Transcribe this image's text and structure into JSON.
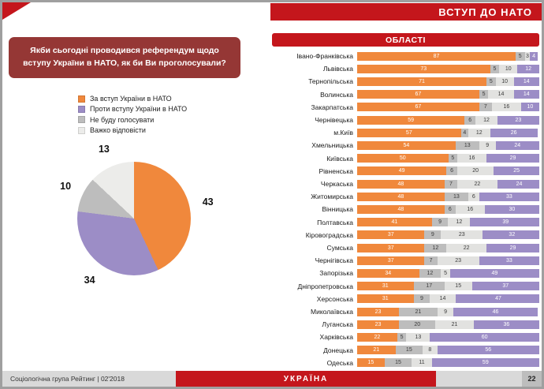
{
  "colors": {
    "banner_red": "#c4161c",
    "question_box_red": "#953735",
    "za_orange": "#f0883c",
    "proty_purple": "#9c8dc6",
    "ne_budu_gray": "#bdbdbd",
    "vazhko_light_gray": "#e2e2e0"
  },
  "header": {
    "title": "ВСТУП ДО НАТО"
  },
  "question": {
    "text": "Якби сьогодні проводився референдум щодо вступу України в НАТО, як би Ви проголосували?"
  },
  "regions_header": "ОБЛАСТІ",
  "legend": [
    {
      "label": "За вступ України в НАТО",
      "color": "#f0883c"
    },
    {
      "label": "Проти вступу України в НАТО",
      "color": "#9c8dc6"
    },
    {
      "label": "Не буду голосувати",
      "color": "#bdbdbd"
    },
    {
      "label": "Важко відповісти",
      "color": "#ececea"
    }
  ],
  "footer": {
    "source": "Соціологічна група Рейтинг  |  02'2018",
    "country": "УКРАЇНА",
    "page_number": "22"
  },
  "chart_data": [
    {
      "type": "pie",
      "title": "Якби сьогодні проводився референдум щодо вступу України в НАТО, як би Ви проголосували?",
      "start_angle_deg": 0,
      "direction": "clockwise",
      "slices": [
        {
          "label": "За вступ України в НАТО",
          "value": 43,
          "color": "#f0883c"
        },
        {
          "label": "Проти вступу України в НАТО",
          "value": 34,
          "color": "#9c8dc6"
        },
        {
          "label": "Не буду голосувати",
          "value": 10,
          "color": "#bdbdbd"
        },
        {
          "label": "Важко відповісти",
          "value": 13,
          "color": "#ececea"
        }
      ]
    },
    {
      "type": "bar",
      "orientation": "horizontal",
      "stacked": true,
      "title": "ОБЛАСТІ",
      "xlim": [
        0,
        100
      ],
      "categories": [
        "Івано-Франківська",
        "Львівська",
        "Тернопільська",
        "Волинська",
        "Закарпатська",
        "Чернівецька",
        "м.Київ",
        "Хмельницька",
        "Київська",
        "Рівненська",
        "Черкаська",
        "Житомирська",
        "Вінницька",
        "Полтавська",
        "Кіровоградська",
        "Сумська",
        "Чернігівська",
        "Запорізька",
        "Дніпропетровська",
        "Херсонська",
        "Миколаївська",
        "Луганська",
        "Харківська",
        "Донецька",
        "Одеська"
      ],
      "series": [
        {
          "name": "За вступ України в НАТО",
          "color": "#f0883c",
          "values": [
            87,
            73,
            71,
            67,
            67,
            59,
            57,
            54,
            50,
            49,
            48,
            48,
            48,
            41,
            37,
            37,
            37,
            34,
            31,
            31,
            23,
            23,
            22,
            21,
            15
          ]
        },
        {
          "name": "Не буду голосувати",
          "color": "#bdbdbd",
          "values": [
            5,
            5,
            5,
            5,
            7,
            6,
            4,
            13,
            5,
            6,
            7,
            13,
            6,
            9,
            9,
            12,
            7,
            12,
            17,
            9,
            21,
            20,
            5,
            15,
            15
          ]
        },
        {
          "name": "Важко відповісти",
          "color": "#e2e2e0",
          "values": [
            3,
            10,
            10,
            14,
            16,
            12,
            12,
            9,
            16,
            20,
            22,
            6,
            16,
            12,
            23,
            22,
            23,
            5,
            15,
            14,
            9,
            21,
            13,
            8,
            11
          ]
        },
        {
          "name": "Проти вступу України в НАТО",
          "color": "#9c8dc6",
          "values": [
            4,
            12,
            14,
            14,
            10,
            23,
            26,
            24,
            29,
            25,
            24,
            33,
            30,
            39,
            32,
            29,
            33,
            49,
            37,
            47,
            46,
            36,
            60,
            56,
            59
          ]
        }
      ]
    }
  ]
}
